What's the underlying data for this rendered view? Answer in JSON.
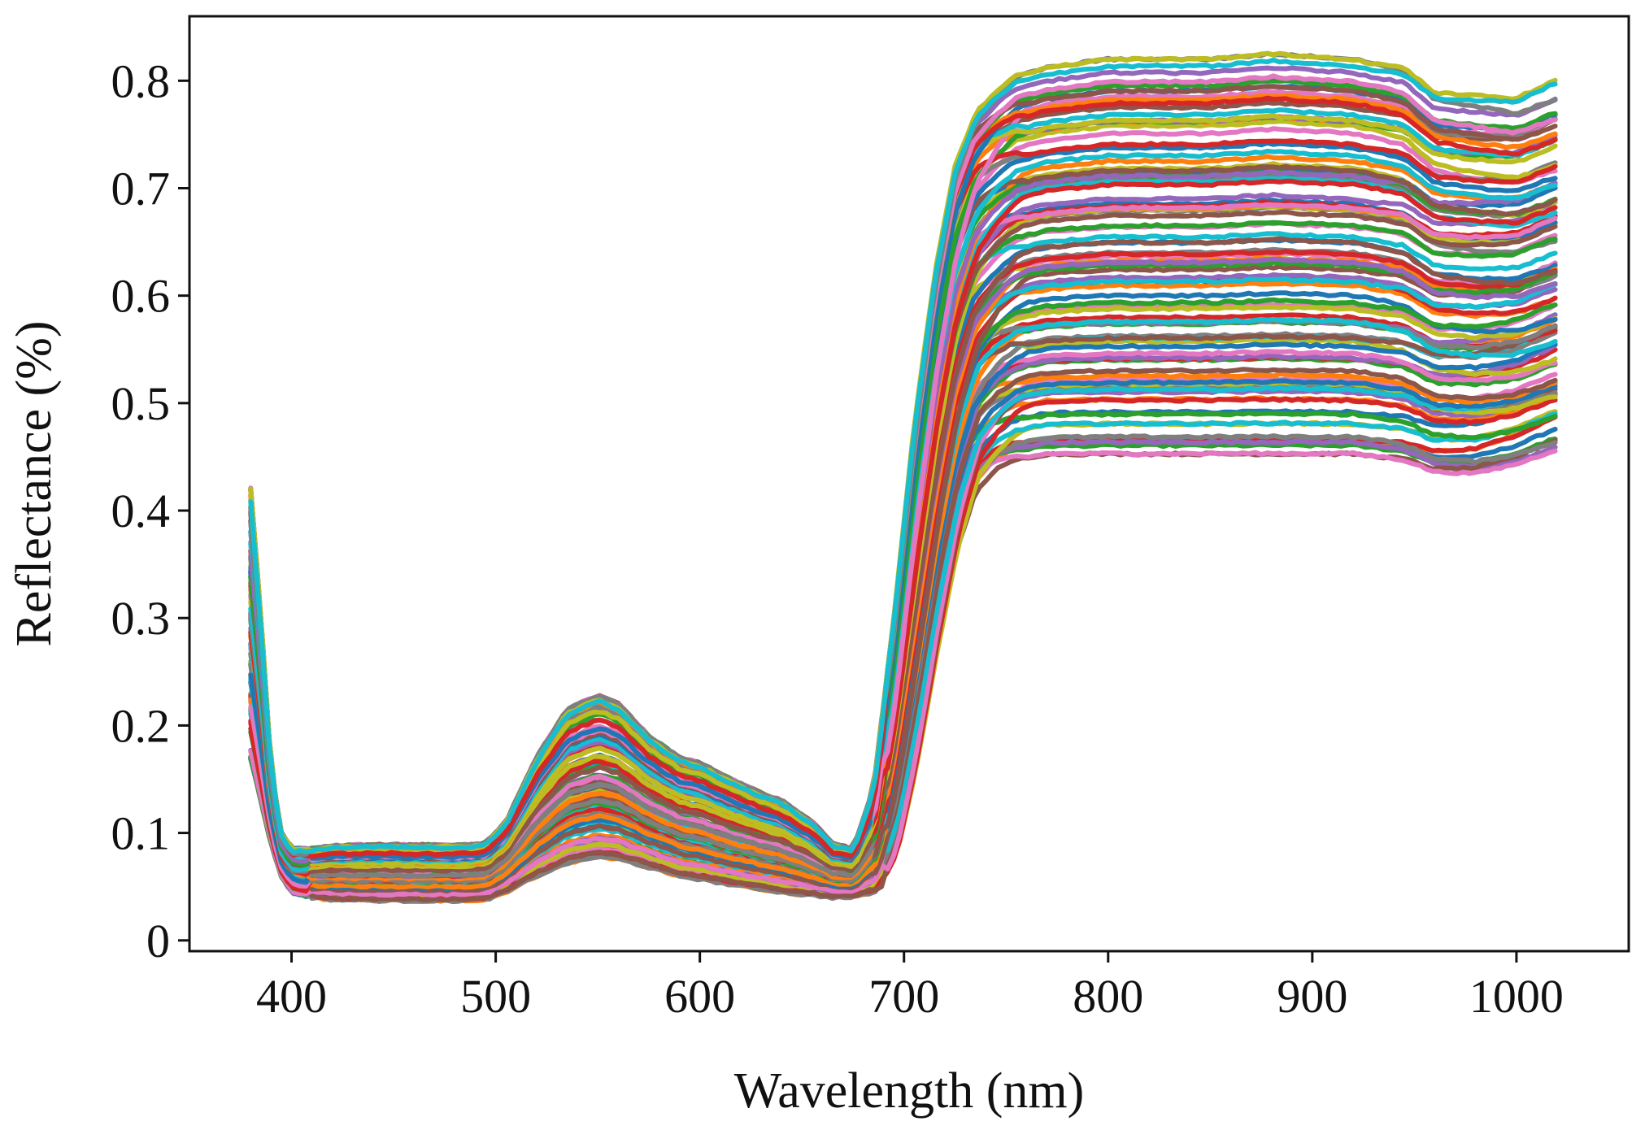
{
  "chart_data": {
    "type": "line",
    "title": "",
    "xlabel": "Wavelength (nm)",
    "ylabel": "Reflectance (%)",
    "xlim": [
      350,
      1055
    ],
    "ylim": [
      -0.01,
      0.86
    ],
    "xticks": [
      400,
      500,
      600,
      700,
      800,
      900,
      1000
    ],
    "xtick_labels": [
      "400",
      "500",
      "600",
      "700",
      "800",
      "900",
      "1000"
    ],
    "yticks": [
      0,
      0.1,
      0.2,
      0.3,
      0.4,
      0.5,
      0.6,
      0.7,
      0.8
    ],
    "ytick_labels": [
      "0",
      "0.1",
      "0.2",
      "0.3",
      "0.4",
      "0.5",
      "0.6",
      "0.7",
      "0.8"
    ],
    "grid": false,
    "legend": "none",
    "series_count": 100,
    "palette": [
      "#1f77b4",
      "#ff7f0e",
      "#2ca02c",
      "#d62728",
      "#9467bd",
      "#8c564b",
      "#e377c2",
      "#7f7f7f",
      "#bcbd22",
      "#17becf"
    ],
    "envelope": {
      "wavelength": [
        380,
        385,
        390,
        395,
        400,
        410,
        420,
        450,
        480,
        495,
        505,
        520,
        535,
        550,
        560,
        575,
        590,
        600,
        615,
        630,
        640,
        655,
        665,
        675,
        685,
        695,
        705,
        715,
        725,
        735,
        745,
        755,
        770,
        800,
        850,
        880,
        920,
        945,
        960,
        980,
        1000,
        1020
      ],
      "lower": [
        0.17,
        0.13,
        0.09,
        0.06,
        0.045,
        0.04,
        0.038,
        0.037,
        0.037,
        0.038,
        0.045,
        0.06,
        0.072,
        0.078,
        0.076,
        0.068,
        0.06,
        0.057,
        0.052,
        0.048,
        0.045,
        0.042,
        0.04,
        0.04,
        0.045,
        0.08,
        0.16,
        0.26,
        0.35,
        0.41,
        0.43,
        0.44,
        0.445,
        0.445,
        0.445,
        0.445,
        0.445,
        0.44,
        0.43,
        0.43,
        0.44,
        0.455
      ],
      "upper": [
        0.42,
        0.3,
        0.16,
        0.1,
        0.085,
        0.085,
        0.088,
        0.089,
        0.088,
        0.09,
        0.11,
        0.17,
        0.215,
        0.228,
        0.22,
        0.19,
        0.17,
        0.165,
        0.15,
        0.137,
        0.13,
        0.11,
        0.09,
        0.085,
        0.14,
        0.3,
        0.48,
        0.62,
        0.72,
        0.77,
        0.79,
        0.805,
        0.812,
        0.82,
        0.82,
        0.825,
        0.82,
        0.81,
        0.785,
        0.78,
        0.775,
        0.79
      ]
    },
    "wavelength_range_nm": [
      380,
      1020
    ]
  }
}
